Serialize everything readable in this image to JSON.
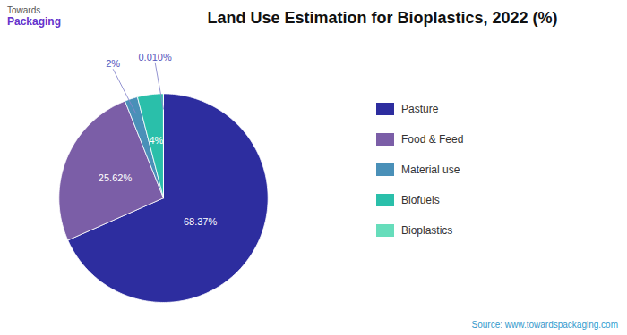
{
  "chart_data": {
    "type": "pie",
    "title": "Land Use Estimation for Bioplastics, 2022 (%)",
    "categories": [
      "Pasture",
      "Food & Feed",
      "Material use",
      "Biofuels",
      "Bioplastics"
    ],
    "values": [
      68.37,
      25.62,
      2.0,
      4.0,
      0.01
    ],
    "value_labels": [
      "68.37%",
      "25.62%",
      "2%",
      "4%",
      "0.010%"
    ],
    "colors": [
      "#2d2d9f",
      "#7b5ea7",
      "#4a90b8",
      "#2abfaa",
      "#66ddbb"
    ],
    "data_labels": true,
    "legend": "right",
    "annotations": [
      "Towards",
      "Packaging",
      "Source: www.towardspackaging.com"
    ]
  }
}
